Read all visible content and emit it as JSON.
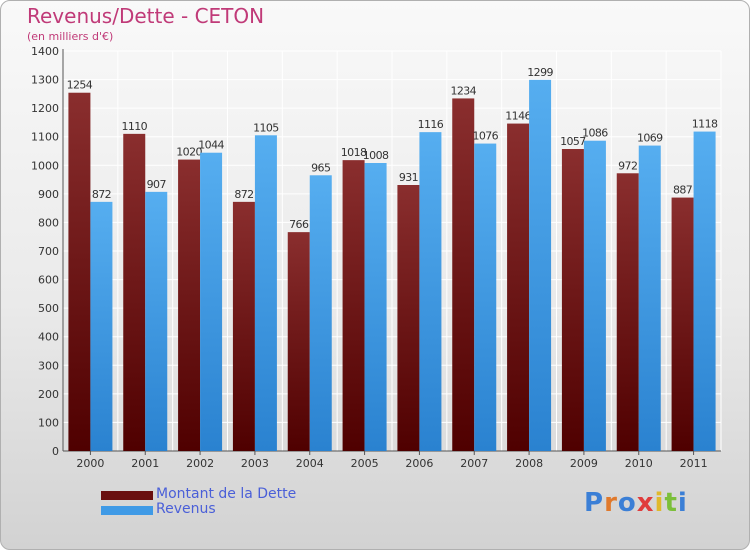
{
  "title": "Revenus/Dette - CETON",
  "subtitle": "(en milliers d'€)",
  "brand": "Proxiti",
  "colors": {
    "dette": "#7a1c1c",
    "revenus": "#3f9ae6",
    "title": "#c03a78",
    "legend_text": "#4a5fd8"
  },
  "chart_data": {
    "type": "bar",
    "categories": [
      "2000",
      "2001",
      "2002",
      "2003",
      "2004",
      "2005",
      "2006",
      "2007",
      "2008",
      "2009",
      "2010",
      "2011"
    ],
    "series": [
      {
        "name": "Montant de la Dette",
        "values": [
          1254,
          1110,
          1020,
          872,
          766,
          1018,
          931,
          1234,
          1146,
          1057,
          972,
          887
        ]
      },
      {
        "name": "Revenus",
        "values": [
          872,
          907,
          1044,
          1105,
          965,
          1008,
          1116,
          1076,
          1299,
          1086,
          1069,
          1118
        ]
      }
    ],
    "ylim": [
      0,
      1400
    ],
    "yticks": [
      0,
      100,
      200,
      300,
      400,
      500,
      600,
      700,
      800,
      900,
      1000,
      1100,
      1200,
      1300,
      1400
    ],
    "grid": true,
    "legend": "bottom-left"
  }
}
